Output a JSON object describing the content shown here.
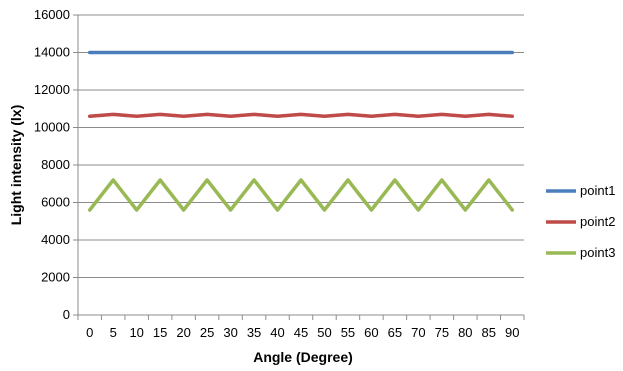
{
  "chart_data": {
    "type": "line",
    "title": "",
    "xlabel": "Angle (Degree)",
    "ylabel": "Light intensity (lx)",
    "ylim": [
      0,
      16000
    ],
    "y_ticks": [
      "0",
      "2000",
      "4000",
      "6000",
      "8000",
      "10000",
      "12000",
      "14000",
      "16000"
    ],
    "grid": "horizontal",
    "legend_position": "right",
    "categories": [
      "0",
      "5",
      "10",
      "15",
      "20",
      "25",
      "30",
      "35",
      "40",
      "45",
      "50",
      "55",
      "60",
      "65",
      "70",
      "75",
      "80",
      "85",
      "90"
    ],
    "series": [
      {
        "name": "point1",
        "color": "#4a7ebb",
        "values": [
          14000,
          14000,
          14000,
          14000,
          14000,
          14000,
          14000,
          14000,
          14000,
          14000,
          14000,
          14000,
          14000,
          14000,
          14000,
          14000,
          14000,
          14000,
          14000
        ]
      },
      {
        "name": "point2",
        "color": "#be4b48",
        "values": [
          10600,
          10700,
          10600,
          10700,
          10600,
          10700,
          10600,
          10700,
          10600,
          10700,
          10600,
          10700,
          10600,
          10700,
          10600,
          10700,
          10600,
          10700,
          10600
        ]
      },
      {
        "name": "point3",
        "color": "#98b954",
        "values": [
          5600,
          7200,
          5600,
          7200,
          5600,
          7200,
          5600,
          7200,
          5600,
          7200,
          5600,
          7200,
          5600,
          7200,
          5600,
          7200,
          5600,
          7200,
          5600
        ]
      }
    ]
  }
}
